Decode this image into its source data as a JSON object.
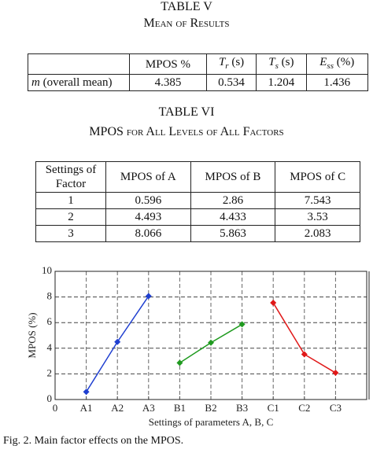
{
  "table5": {
    "label": "TABLE V",
    "title": "Mean of Results",
    "headers": [
      "MPOS %",
      {
        "main": "T",
        "sub": "r",
        "rest": "(s)"
      },
      {
        "main": "T",
        "sub": "s",
        "rest": "(s)"
      },
      {
        "main": "E",
        "sub": "ss",
        "rest": "(%)"
      }
    ],
    "row": {
      "label": {
        "main": "m",
        "rest": "(overall mean)"
      },
      "cells": [
        4.385,
        0.534,
        1.204,
        1.436
      ]
    }
  },
  "table6": {
    "label": "TABLE VI",
    "title": "MPOS for All Levels of All Factors",
    "headers": [
      "Settings of Factor",
      "MPOS of A",
      "MPOS of B",
      "MPOS of C"
    ],
    "rows": [
      [
        1,
        0.596,
        2.86,
        7.543
      ],
      [
        2,
        4.493,
        4.433,
        3.53
      ],
      [
        3,
        8.066,
        5.863,
        2.083
      ]
    ]
  },
  "chart_data": {
    "type": "line",
    "ylabel": "MPOS (%)",
    "xlabel": "Settings of parameters A, B, C",
    "xlim": [
      0,
      10
    ],
    "ylim": [
      0,
      10
    ],
    "xticks": [
      0,
      {
        "value": 1,
        "label": "A1"
      },
      {
        "value": 2,
        "label": "A2"
      },
      {
        "value": 3,
        "label": "A3"
      },
      {
        "value": 4,
        "label": "B1"
      },
      {
        "value": 5,
        "label": "B2"
      },
      {
        "value": 6,
        "label": "B3"
      },
      {
        "value": 7,
        "label": "C1"
      },
      {
        "value": 8,
        "label": "C2"
      },
      {
        "value": 9,
        "label": "C3"
      }
    ],
    "yticks": [
      0,
      2,
      4,
      6,
      8,
      10
    ],
    "grid": true,
    "series": [
      {
        "color": "#1f3fd0",
        "x": [
          1,
          2,
          3
        ],
        "values": [
          0.596,
          4.493,
          8.066
        ]
      },
      {
        "color": "#1f9a1f",
        "x": [
          4,
          5,
          6
        ],
        "values": [
          2.86,
          4.433,
          5.863
        ]
      },
      {
        "color": "#e01818",
        "x": [
          7,
          8,
          9
        ],
        "values": [
          7.543,
          3.53,
          2.083
        ]
      }
    ]
  },
  "caption": "Fig. 2.    Main factor effects on the MPOS."
}
